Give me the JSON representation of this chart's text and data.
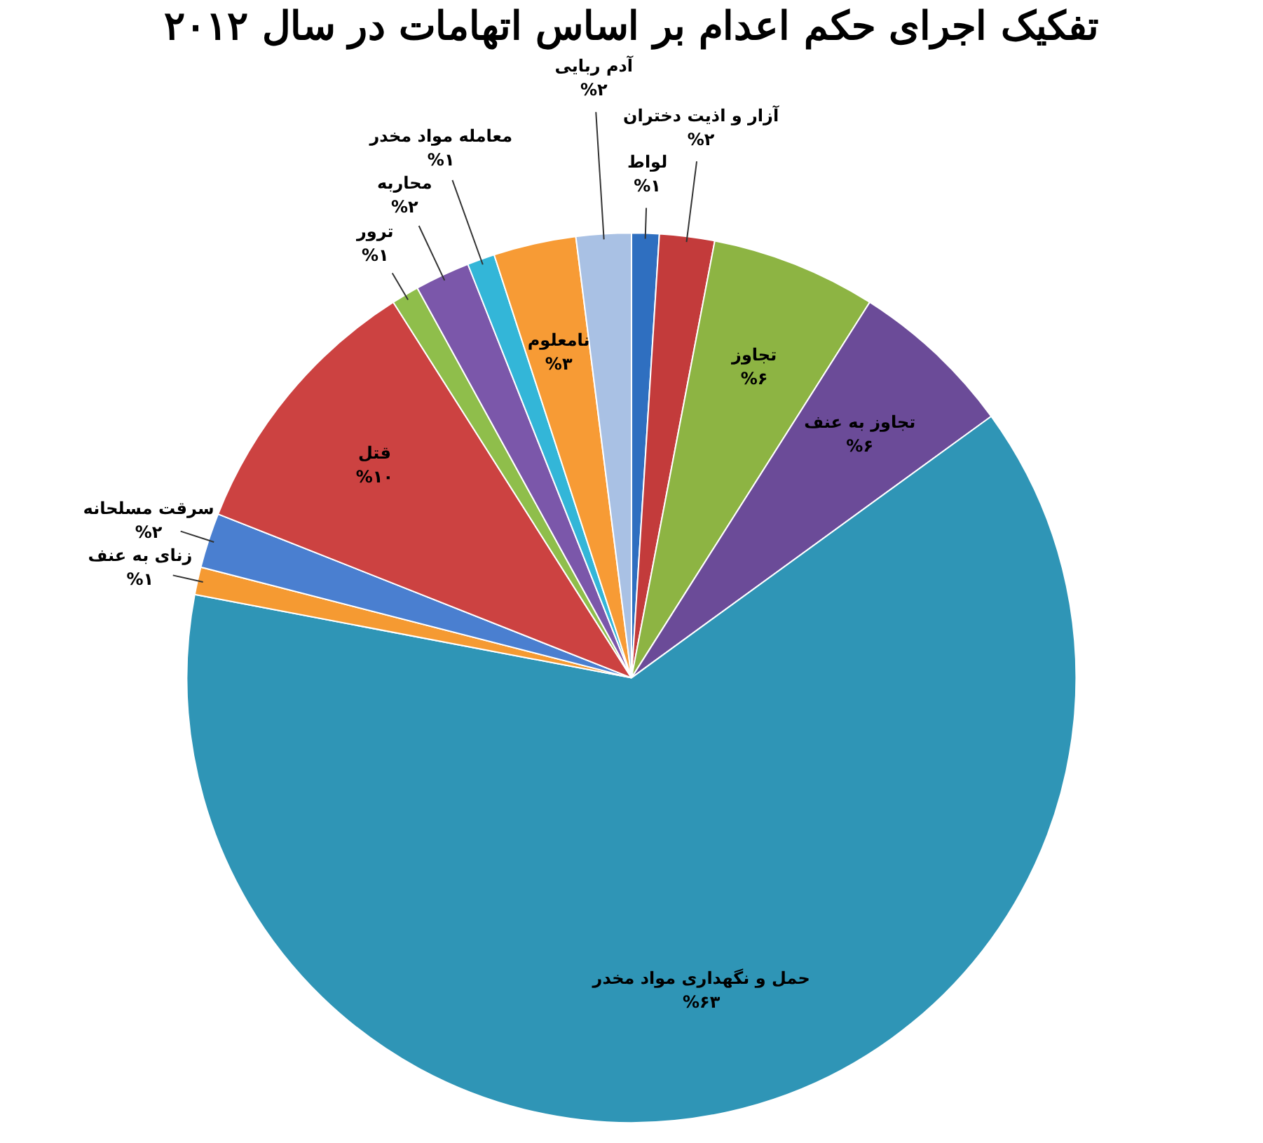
{
  "chart_data": {
    "type": "pie",
    "title": "تفکیک اجرای حکم اعدام بر اساس اتهامات در سال ۲۰۱۲",
    "categories": [
      "لواط",
      "آزار و اذیت دختران",
      "تجاوز",
      "تجاوز به عنف",
      "حمل و نگهداری مواد مخدر",
      "زنای به عنف",
      "سرقت مسلحانه",
      "قتل",
      "ترور",
      "محاربه",
      "معامله مواد مخدر",
      "نامعلوم",
      "آدم ربایی"
    ],
    "values": [
      1,
      2,
      6,
      6,
      63,
      1,
      2,
      10,
      1,
      2,
      1,
      3,
      2
    ],
    "value_labels": [
      "%۱",
      "%۲",
      "%۶",
      "%۶",
      "%۶۳",
      "%۱",
      "%۲",
      "%۱۰",
      "%۱",
      "%۲",
      "%۱",
      "%۳",
      "%۲"
    ],
    "colors": [
      "#2f6fc0",
      "#c33b3b",
      "#8db443",
      "#6b4b98",
      "#2f95b6",
      "#f59a32",
      "#4a7fd0",
      "#cc4241",
      "#8fbe4b",
      "#7b57aa",
      "#33b6d8",
      "#f79b35",
      "#a9c1e4"
    ],
    "legend": false
  }
}
